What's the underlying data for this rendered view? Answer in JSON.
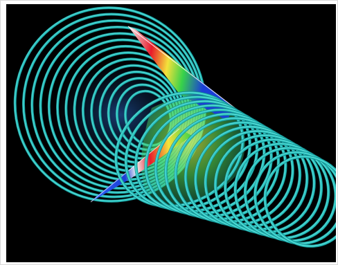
{
  "image": {
    "kind": "3d-vortex-visualization",
    "background_color": "#000000",
    "colors": {
      "tube": "#2fc8c4",
      "tube_shade": "#138a8c",
      "tube_highlight": "#9ff5ee",
      "blade_white": "#f4f4f4",
      "blade_red": "#e8192a",
      "blade_yellow": "#f4e23b",
      "blade_green": "#37d24a",
      "blade_blue": "#1b3fd6",
      "sheet_green": "#4de05a",
      "sheet_yellow": "#e6ea40"
    },
    "elements": [
      "helical-vortex-tubes",
      "rainbow-blade-upper",
      "rainbow-blade-lower",
      "translucent-shock-sheet"
    ]
  }
}
